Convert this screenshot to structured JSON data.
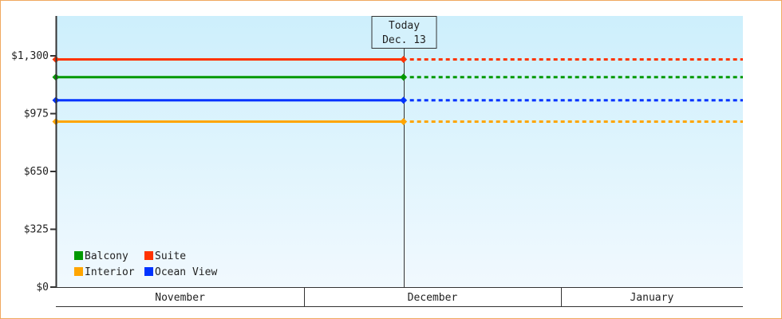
{
  "chart_data": {
    "type": "line",
    "ylim": [
      0,
      1400
    ],
    "y_ticks": [
      "$0",
      "$325",
      "$650",
      "$975",
      "$1,300"
    ],
    "y_tick_values": [
      0,
      325,
      650,
      975,
      1300
    ],
    "x_range": [
      "2024-11-01",
      "2025-01-23"
    ],
    "x_month_labels": [
      {
        "label": "November",
        "start": "2024-11-01",
        "end": "2024-12-01"
      },
      {
        "label": "December",
        "start": "2024-12-01",
        "end": "2025-01-01"
      },
      {
        "label": "January",
        "start": "2025-01-01",
        "end": "2025-01-23"
      }
    ],
    "today": {
      "line1": "Today",
      "line2": "Dec. 13",
      "date": "2024-12-13"
    },
    "grid": false,
    "legend_position": "bottom-left",
    "series": [
      {
        "name": "Balcony",
        "color": "#009900",
        "x": [
          "2024-11-01",
          "2024-12-13"
        ],
        "values": [
          1180,
          1180
        ],
        "projected_to": "2025-01-23"
      },
      {
        "name": "Suite",
        "color": "#ff3300",
        "x": [
          "2024-11-01",
          "2024-12-13"
        ],
        "values": [
          1280,
          1280
        ],
        "projected_to": "2025-01-23"
      },
      {
        "name": "Interior",
        "color": "#ffa500",
        "x": [
          "2024-11-01",
          "2024-12-13"
        ],
        "values": [
          930,
          930
        ],
        "projected_to": "2025-01-23"
      },
      {
        "name": "Ocean View",
        "color": "#0033ff",
        "x": [
          "2024-11-01",
          "2024-12-13"
        ],
        "values": [
          1050,
          1050
        ],
        "projected_to": "2025-01-23"
      }
    ],
    "background_top": "#cdeffc",
    "background_bottom": "#f1f9fe"
  }
}
